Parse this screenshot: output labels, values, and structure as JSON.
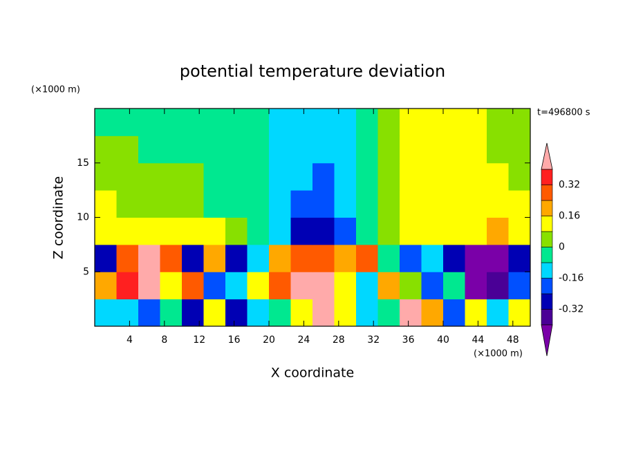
{
  "chart_data": {
    "type": "contour",
    "title": "potential temperature deviation",
    "x_label": "X coordinate",
    "y_label": "Z coordinate",
    "x_unit": "(×1000 m)",
    "y_unit": "(×1000 m)",
    "annotation": "t=496800 s",
    "xlim": [
      0,
      50
    ],
    "ylim": [
      0,
      20
    ],
    "xticks": [
      4,
      8,
      12,
      16,
      20,
      24,
      28,
      32,
      36,
      40,
      44,
      48
    ],
    "yticks": [
      5,
      10,
      15
    ],
    "x": [
      1.25,
      3.75,
      6.25,
      8.75,
      11.25,
      13.75,
      16.25,
      18.75,
      21.25,
      23.75,
      26.25,
      28.75,
      31.25,
      33.75,
      36.25,
      38.75,
      41.25,
      43.75,
      46.25,
      48.75
    ],
    "y": [
      1.25,
      3.75,
      6.25,
      8.75,
      11.25,
      13.75,
      16.25,
      18.75
    ],
    "z": [
      [
        -0.12,
        -0.12,
        -0.2,
        -0.04,
        -0.28,
        0.12,
        -0.28,
        -0.12,
        -0.04,
        0.12,
        0.44,
        0.12,
        -0.12,
        -0.04,
        0.44,
        0.2,
        -0.2,
        0.12,
        -0.12,
        0.12
      ],
      [
        0.2,
        0.36,
        0.44,
        0.12,
        0.28,
        -0.2,
        -0.12,
        0.12,
        0.28,
        0.44,
        0.44,
        0.12,
        -0.12,
        0.2,
        0.04,
        -0.2,
        -0.04,
        -0.44,
        -0.36,
        -0.2
      ],
      [
        -0.28,
        0.28,
        0.44,
        0.28,
        -0.28,
        0.2,
        -0.28,
        -0.12,
        0.2,
        0.28,
        0.28,
        0.2,
        0.28,
        -0.04,
        -0.2,
        -0.12,
        -0.28,
        -0.44,
        -0.44,
        -0.28
      ],
      [
        0.12,
        0.12,
        0.12,
        0.12,
        0.12,
        0.12,
        0.04,
        -0.04,
        -0.12,
        -0.28,
        -0.28,
        -0.2,
        -0.04,
        0.04,
        0.12,
        0.12,
        0.12,
        0.12,
        0.2,
        0.12
      ],
      [
        0.12,
        0.04,
        0.04,
        0.04,
        0.04,
        -0.04,
        -0.04,
        -0.04,
        -0.12,
        -0.2,
        -0.2,
        -0.12,
        -0.04,
        0.04,
        0.12,
        0.12,
        0.12,
        0.12,
        0.12,
        0.12
      ],
      [
        0.04,
        0.04,
        0.04,
        0.04,
        0.04,
        -0.04,
        -0.04,
        -0.04,
        -0.12,
        -0.12,
        -0.2,
        -0.12,
        -0.04,
        0.04,
        0.12,
        0.12,
        0.12,
        0.12,
        0.12,
        0.04
      ],
      [
        0.04,
        0.04,
        -0.04,
        -0.04,
        -0.04,
        -0.04,
        -0.04,
        -0.04,
        -0.12,
        -0.12,
        -0.12,
        -0.12,
        -0.04,
        0.04,
        0.12,
        0.12,
        0.12,
        0.12,
        0.04,
        0.04
      ],
      [
        -0.04,
        -0.04,
        -0.04,
        -0.04,
        -0.04,
        -0.04,
        -0.04,
        -0.04,
        -0.12,
        -0.12,
        -0.12,
        -0.12,
        -0.04,
        0.04,
        0.12,
        0.12,
        0.12,
        0.12,
        0.04,
        0.04
      ]
    ],
    "levels": [
      -0.4,
      -0.32,
      -0.24,
      -0.16,
      -0.08,
      0,
      0.08,
      0.16,
      0.24,
      0.32,
      0.4
    ],
    "colors": [
      "#7a00a8",
      "#4a0096",
      "#0000b4",
      "#0050ff",
      "#00d8ff",
      "#00e890",
      "#88e000",
      "#ffff00",
      "#ffa800",
      "#ff5a00",
      "#ff2020",
      "#ffaaaa"
    ],
    "colorbar_ticks": [
      0.32,
      0.16,
      0,
      -0.16,
      -0.32
    ]
  }
}
